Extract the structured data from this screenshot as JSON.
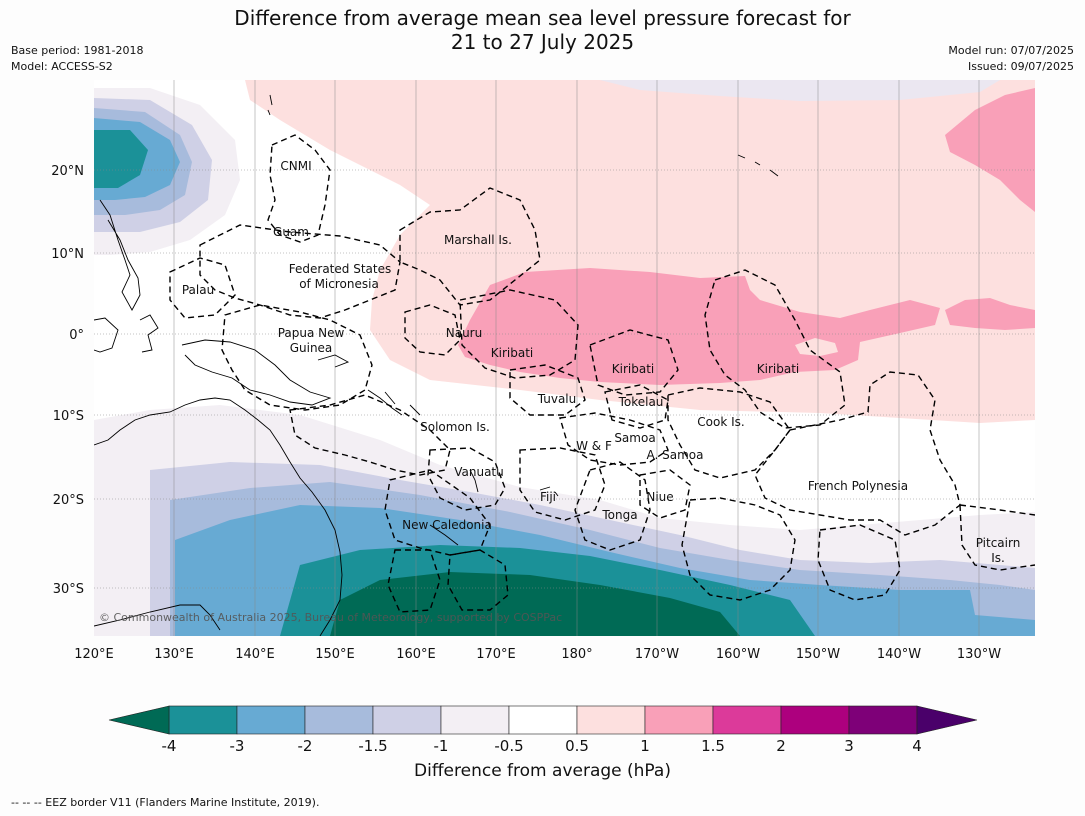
{
  "title": {
    "line1": "Difference from average mean sea level pressure forecast for",
    "line2": "21 to 27 July 2025"
  },
  "meta_left": {
    "base_period": "Base period: 1981-2018",
    "model": "Model: ACCESS-S2"
  },
  "meta_right": {
    "model_run": "Model run: 07/07/2025",
    "issued": "Issued: 09/07/2025"
  },
  "map": {
    "lon_labels": [
      "120°E",
      "130°E",
      "140°E",
      "150°E",
      "160°E",
      "170°E",
      "180°",
      "170°W",
      "160°W",
      "150°W",
      "140°W",
      "130°W"
    ],
    "lat_labels": [
      "20°N",
      "10°N",
      "0°",
      "10°S",
      "20°S",
      "30°S"
    ],
    "region_labels": [
      {
        "text": "CNMI"
      },
      {
        "text": "Guam"
      },
      {
        "text": "Marshall Is."
      },
      {
        "text": "Federated States"
      },
      {
        "text": "of Micronesia"
      },
      {
        "text": "Palau"
      },
      {
        "text": "Papua New"
      },
      {
        "text": "Guinea"
      },
      {
        "text": "Nauru"
      },
      {
        "text": "Kiribati"
      },
      {
        "text": "Kiribati"
      },
      {
        "text": "Kiribati"
      },
      {
        "text": "Tuvalu"
      },
      {
        "text": "Tokelau"
      },
      {
        "text": "Cook Is."
      },
      {
        "text": "Solomon Is."
      },
      {
        "text": "Samoa"
      },
      {
        "text": "W & F"
      },
      {
        "text": "A. Samoa"
      },
      {
        "text": "Vanuatu"
      },
      {
        "text": "Fiji"
      },
      {
        "text": "Niue"
      },
      {
        "text": "French Polynesia"
      },
      {
        "text": "Tonga"
      },
      {
        "text": "New Caledonia"
      },
      {
        "text": "Pitcairn"
      },
      {
        "text": "Is."
      }
    ],
    "copyright": "© Commonwealth of Australia 2025, Bureau of Meteorology, supported by COSPPac"
  },
  "colorbar": {
    "title": "Difference from average (hPa)",
    "ticks": [
      "-4",
      "-3",
      "-2",
      "-1.5",
      "-1",
      "-0.5",
      "0.5",
      "1",
      "1.5",
      "2",
      "3",
      "4"
    ],
    "colors": {
      "below_-4": "#006a55",
      "-4_-3": "#1b9198",
      "-3_-2": "#67aad3",
      "-2_-1.5": "#a7bbdc",
      "-1.5_-1": "#cfd0e6",
      "-1_-0.5": "#f3eff4",
      "-0.5_0.5": "#ffffff",
      "0.5_1": "#fde0df",
      "1_1.5": "#f9a0b8",
      "1.5_2": "#dc3a9a",
      "2_3": "#ad007e",
      "3_4": "#7e0078",
      "above_4": "#4a006a"
    }
  },
  "footnote": "--  --  -- EEZ border V11 (Flanders Marine Institute, 2019)."
}
